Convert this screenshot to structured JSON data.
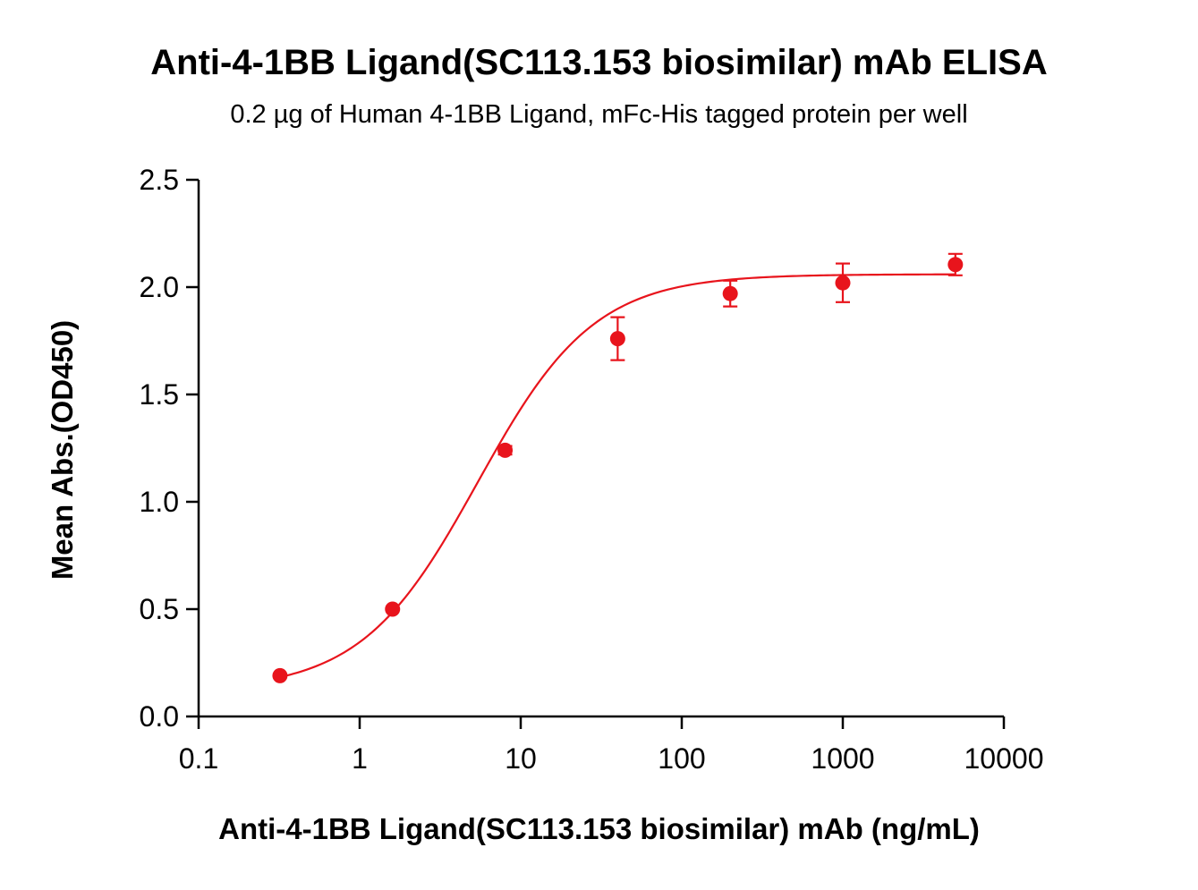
{
  "chart_data": {
    "type": "scatter",
    "title": "Anti-4-1BB Ligand(SC113.153 biosimilar) mAb ELISA",
    "subtitle": "0.2 µg of Human 4-1BB Ligand, mFc-His tagged protein per well",
    "xlabel": "Anti-4-1BB Ligand(SC113.153 biosimilar) mAb (ng/mL)",
    "ylabel": "Mean Abs.(OD450)",
    "xscale": "log",
    "xlim": [
      0.1,
      10000
    ],
    "ylim": [
      0,
      2.5
    ],
    "x_ticks": [
      "0.1",
      "1",
      "10",
      "100",
      "1000",
      "10000"
    ],
    "y_ticks": [
      "0.0",
      "0.5",
      "1.0",
      "1.5",
      "2.0",
      "2.5"
    ],
    "grid": false,
    "legend": "none",
    "series": [
      {
        "color": "#e8141c",
        "x": [
          0.32,
          1.6,
          8,
          40,
          200,
          1000,
          5000
        ],
        "y": [
          0.19,
          0.5,
          1.24,
          1.76,
          1.97,
          2.02,
          2.105
        ],
        "error": [
          0.01,
          0.01,
          0.02,
          0.1,
          0.06,
          0.09,
          0.05
        ],
        "fit": {
          "model": "4PL",
          "bottom": 0.12,
          "top": 2.06,
          "ec50": 5.4,
          "hill": 1.2
        }
      }
    ]
  }
}
